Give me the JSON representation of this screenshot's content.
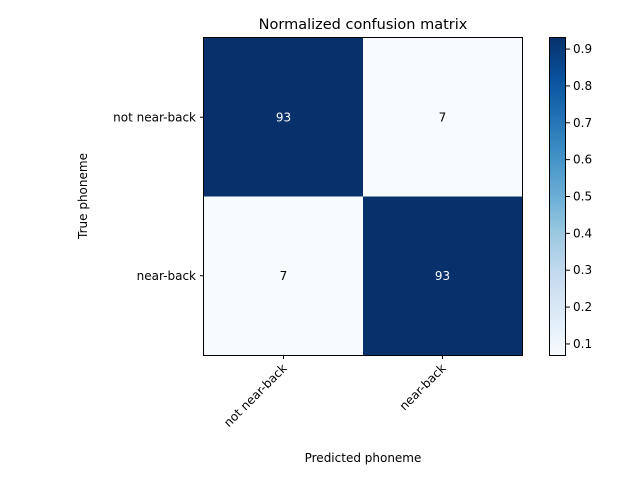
{
  "chart_data": {
    "type": "heatmap",
    "title": "Normalized confusion matrix",
    "xlabel": "Predicted phoneme",
    "ylabel": "True phoneme",
    "x_categories": [
      "not near-back",
      "near-back"
    ],
    "y_categories": [
      "not near-back",
      "near-back"
    ],
    "values": [
      [
        0.93,
        0.07
      ],
      [
        0.07,
        0.93
      ]
    ],
    "cell_labels": [
      [
        "93",
        "7"
      ],
      [
        "7",
        "93"
      ]
    ],
    "colorbar": {
      "range": [
        0.07,
        0.93
      ],
      "ticks": [
        "0.1",
        "0.2",
        "0.3",
        "0.4",
        "0.5",
        "0.6",
        "0.7",
        "0.8",
        "0.9"
      ],
      "colormap": "Blues",
      "color_low": "#f7fbff",
      "color_high": "#08306b"
    },
    "grid": false
  }
}
